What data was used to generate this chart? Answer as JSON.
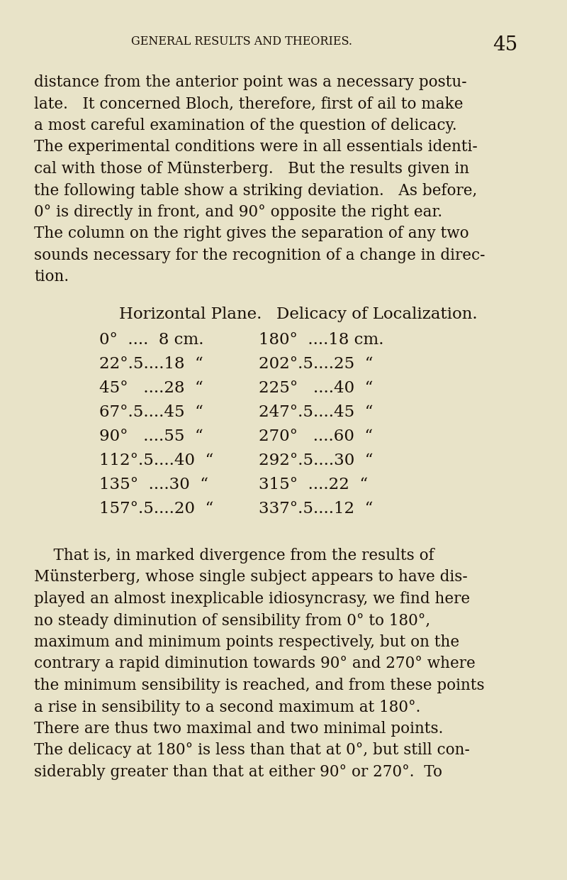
{
  "bg_color": "#e8e3c8",
  "text_color": "#1a1008",
  "header_text": "GENERAL RESULTS AND THEORIES.",
  "page_number": "45",
  "header_fontsize": 11.5,
  "page_num_fontsize": 20,
  "body_fontsize": 15.5,
  "table_fontsize": 16.5,
  "paragraph1_lines": [
    "distance from the anterior point was a necessary postu-",
    "late.   It concerned Bloch, therefore, first of ail to make",
    "a most careful examination of the question of delicacy.",
    "The experimental conditions were in all essentials identi-",
    "cal with those of Münsterberg.   But the results given in",
    "the following table show a striking deviation.   As before,",
    "0° is directly in front, and 90° opposite the right ear.",
    "The column on the right gives the separation of any two",
    "sounds necessary for the recognition of a change in direc-",
    "tion."
  ],
  "table_header_left": "Horizontal Plane.",
  "table_header_right": "Delicacy of Localization.",
  "table_rows_left": [
    "0°  ....  8 cm.",
    "22°.5....18  “",
    "45°   ....28  “",
    "67°.5....45  “",
    "90°   ....55  “",
    "112°.5....40  “",
    "135°  ....30  “",
    "157°.5....20  “"
  ],
  "table_rows_right": [
    "180°  ....18 cm.",
    "202°.5....25  “",
    "225°   ....40  “",
    "247°.5....45  “",
    "270°   ....60  “",
    "292°.5....30  “",
    "315°  ....22  “",
    "337°.5....12  “"
  ],
  "paragraph2_lines": [
    "    That is, in marked divergence from the results of",
    "Münsterberg, whose single subject appears to have dis-",
    "played an almost inexplicable idiosyncrasy, we find here",
    "no steady diminution of sensibility from 0° to 180°,",
    "maximum and minimum points respectively, but on the",
    "contrary a rapid diminution towards 90° and 270° where",
    "the minimum sensibility is reached, and from these points",
    "a rise in sensibility to a second maximum at 180°.",
    "There are thus two maximal and two minimal points.",
    "The delicacy at 180° is less than that at 0°, but still con-",
    "siderably greater than that at either 90° or 270°.  To"
  ]
}
